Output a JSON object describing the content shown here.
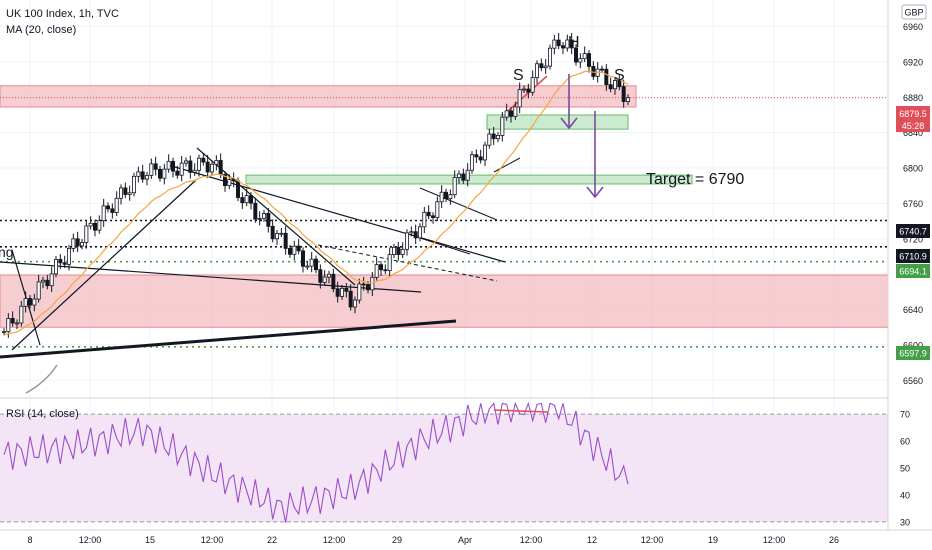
{
  "header": {
    "symbol_label": "UK 100 Index, 1h, TVC",
    "ma_label": "MA (20, close)",
    "currency_label": "GBP",
    "rsi_label": "RSI (14, close)"
  },
  "price_axis": {
    "min": 6540,
    "max": 6990,
    "ticks": [
      "6960",
      "6920",
      "6880",
      "6840",
      "6800",
      "6760",
      "6720",
      "6680",
      "6640",
      "6600",
      "6560"
    ],
    "tick_values": [
      6960,
      6920,
      6880,
      6840,
      6800,
      6760,
      6720,
      6680,
      6640,
      6600,
      6560
    ]
  },
  "rsi_axis": {
    "min": 27,
    "max": 76,
    "ticks": [
      "70",
      "60",
      "50",
      "40",
      "30"
    ],
    "tick_values": [
      70,
      60,
      50,
      40,
      30
    ],
    "upper_band": 70,
    "lower_band": 30
  },
  "time_axis": {
    "labels": [
      "8",
      "12:00",
      "15",
      "12:00",
      "22",
      "12:00",
      "29",
      "Apr",
      "12:00",
      "12",
      "12:00",
      "19",
      "12:00",
      "26"
    ]
  },
  "badges": {
    "current_price": "6879.5",
    "countdown": "45:28",
    "level_1": "6740.7",
    "level_2": "6710.9",
    "level_3": "6694.1",
    "level_4": "6597.9"
  },
  "levels": {
    "current_price": 6879.5,
    "level_1": 6740.7,
    "level_2": 6710.9,
    "level_3": 6694.1,
    "level_4": 6597.9
  },
  "annotations": {
    "left_shoulder": "S",
    "head": "H",
    "right_shoulder": "S",
    "target": "Target = 6790",
    "cut_label": "ng"
  },
  "zones": {
    "upper_resistance": [
      6869,
      6893
    ],
    "head_box": [
      6844,
      6860
    ],
    "target_box": [
      6782,
      6792
    ],
    "lower_resistance": [
      6620,
      6679
    ]
  },
  "colors": {
    "price_line": "#5d5d5d",
    "ma_line": "#f5a543",
    "resistance_fill": "#f2b8bc",
    "support_fill": "#b9e3bd",
    "rsi_line": "#9c4dcc",
    "rsi_band_fill": "#f3e5f5",
    "arrow": "#7b4a9c",
    "badge_dark": "#131722",
    "badge_green": "#43a047",
    "badge_red": "#e04f57"
  },
  "chart_data": {
    "type": "line",
    "x": [
      "8",
      "12:00",
      "15",
      "12:00",
      "22",
      "12:00",
      "29",
      "Apr",
      "12:00",
      "12"
    ],
    "series": [
      {
        "values": [
          6615,
          6712,
          6795,
          6805,
          6718,
          6650,
          6735,
          6830,
          6945,
          6879.5
        ]
      }
    ],
    "rsi_values": [
      55,
      58,
      64,
      48,
      35,
      42,
      60,
      72,
      73,
      44
    ],
    "ylim": [
      6540,
      6990
    ]
  }
}
